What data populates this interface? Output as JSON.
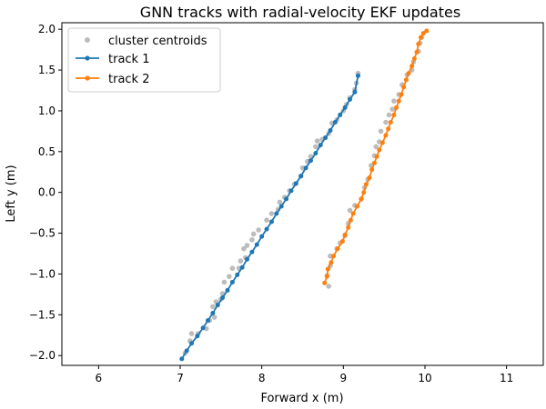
{
  "chart_data": {
    "type": "line",
    "title": "GNN tracks with radial-velocity EKF updates",
    "xlabel": "Forward x (m)",
    "ylabel": "Left y (m)",
    "xlim": [
      5.55,
      11.45
    ],
    "ylim": [
      -2.12,
      2.08
    ],
    "xticks": [
      6,
      7,
      8,
      9,
      10,
      11
    ],
    "yticks": [
      -2.0,
      -1.5,
      -1.0,
      -0.5,
      0.0,
      0.5,
      1.0,
      1.5,
      2.0
    ],
    "xtick_labels": [
      "6",
      "7",
      "8",
      "9",
      "10",
      "11"
    ],
    "ytick_labels": [
      "−2.0",
      "−1.5",
      "−1.0",
      "−0.5",
      "0.0",
      "0.5",
      "1.0",
      "1.5",
      "2.0"
    ],
    "grid": false,
    "legend_position": "top-left",
    "series": [
      {
        "name": "cluster centroids",
        "style": "scatter",
        "color": "#a0a0a0",
        "points": [
          [
            7.06,
            -1.97
          ],
          [
            7.12,
            -1.82
          ],
          [
            7.14,
            -1.73
          ],
          [
            7.22,
            -1.73
          ],
          [
            7.32,
            -1.67
          ],
          [
            7.36,
            -1.57
          ],
          [
            7.42,
            -1.53
          ],
          [
            7.4,
            -1.4
          ],
          [
            7.44,
            -1.34
          ],
          [
            7.5,
            -1.31
          ],
          [
            7.52,
            -1.24
          ],
          [
            7.54,
            -1.1
          ],
          [
            7.6,
            -1.03
          ],
          [
            7.64,
            -0.93
          ],
          [
            7.72,
            -0.93
          ],
          [
            7.74,
            -0.84
          ],
          [
            7.8,
            -0.8
          ],
          [
            7.78,
            -0.69
          ],
          [
            7.82,
            -0.65
          ],
          [
            7.88,
            -0.58
          ],
          [
            7.9,
            -0.51
          ],
          [
            7.96,
            -0.46
          ],
          [
            8.06,
            -0.34
          ],
          [
            8.12,
            -0.26
          ],
          [
            8.2,
            -0.21
          ],
          [
            8.22,
            -0.12
          ],
          [
            8.28,
            -0.06
          ],
          [
            8.34,
            0.02
          ],
          [
            8.4,
            0.1
          ],
          [
            8.48,
            0.2
          ],
          [
            8.5,
            0.3
          ],
          [
            8.56,
            0.38
          ],
          [
            8.6,
            0.44
          ],
          [
            8.66,
            0.56
          ],
          [
            8.68,
            0.63
          ],
          [
            8.74,
            0.65
          ],
          [
            8.82,
            0.72
          ],
          [
            8.86,
            0.85
          ],
          [
            8.92,
            0.89
          ],
          [
            9.0,
            1.0
          ],
          [
            9.04,
            1.08
          ],
          [
            9.08,
            1.16
          ],
          [
            9.14,
            1.26
          ],
          [
            9.16,
            1.34
          ],
          [
            9.18,
            1.46
          ],
          [
            8.82,
            -1.15
          ],
          [
            8.8,
            -1.02
          ],
          [
            8.84,
            -0.9
          ],
          [
            8.84,
            -0.78
          ],
          [
            8.92,
            -0.69
          ],
          [
            8.96,
            -0.62
          ],
          [
            9.02,
            -0.53
          ],
          [
            9.06,
            -0.38
          ],
          [
            9.08,
            -0.22
          ],
          [
            9.14,
            -0.16
          ],
          [
            9.22,
            -0.08
          ],
          [
            9.26,
            0.06
          ],
          [
            9.3,
            0.16
          ],
          [
            9.34,
            0.33
          ],
          [
            9.38,
            0.45
          ],
          [
            9.4,
            0.56
          ],
          [
            9.44,
            0.62
          ],
          [
            9.46,
            0.75
          ],
          [
            9.52,
            0.86
          ],
          [
            9.56,
            0.95
          ],
          [
            9.6,
            1.02
          ],
          [
            9.62,
            1.12
          ],
          [
            9.68,
            1.2
          ],
          [
            9.72,
            1.32
          ],
          [
            9.78,
            1.44
          ],
          [
            9.84,
            1.5
          ],
          [
            9.86,
            1.6
          ],
          [
            9.92,
            1.73
          ],
          [
            9.94,
            1.83
          ],
          [
            9.96,
            1.9
          ]
        ]
      },
      {
        "name": "track 1",
        "style": "line-marker",
        "color": "#1f77b4",
        "points": [
          [
            7.02,
            -2.04
          ],
          [
            7.08,
            -1.94
          ],
          [
            7.14,
            -1.85
          ],
          [
            7.21,
            -1.76
          ],
          [
            7.28,
            -1.66
          ],
          [
            7.34,
            -1.57
          ],
          [
            7.4,
            -1.48
          ],
          [
            7.46,
            -1.38
          ],
          [
            7.52,
            -1.29
          ],
          [
            7.58,
            -1.2
          ],
          [
            7.64,
            -1.1
          ],
          [
            7.7,
            -1.01
          ],
          [
            7.76,
            -0.92
          ],
          [
            7.82,
            -0.82
          ],
          [
            7.88,
            -0.73
          ],
          [
            7.94,
            -0.64
          ],
          [
            8.0,
            -0.54
          ],
          [
            8.06,
            -0.45
          ],
          [
            8.12,
            -0.36
          ],
          [
            8.18,
            -0.26
          ],
          [
            8.24,
            -0.17
          ],
          [
            8.3,
            -0.08
          ],
          [
            8.36,
            0.02
          ],
          [
            8.42,
            0.11
          ],
          [
            8.48,
            0.2
          ],
          [
            8.54,
            0.3
          ],
          [
            8.6,
            0.39
          ],
          [
            8.66,
            0.48
          ],
          [
            8.72,
            0.58
          ],
          [
            8.78,
            0.67
          ],
          [
            8.84,
            0.76
          ],
          [
            8.9,
            0.86
          ],
          [
            8.96,
            0.95
          ],
          [
            9.02,
            1.04
          ],
          [
            9.08,
            1.14
          ],
          [
            9.14,
            1.23
          ],
          [
            9.18,
            1.43
          ]
        ]
      },
      {
        "name": "track 2",
        "style": "line-marker",
        "color": "#ff7f0e",
        "points": [
          [
            8.77,
            -1.11
          ],
          [
            8.8,
            -1.03
          ],
          [
            8.81,
            -0.94
          ],
          [
            8.85,
            -0.86
          ],
          [
            8.88,
            -0.78
          ],
          [
            8.93,
            -0.69
          ],
          [
            8.99,
            -0.6
          ],
          [
            9.02,
            -0.52
          ],
          [
            9.06,
            -0.43
          ],
          [
            9.09,
            -0.34
          ],
          [
            9.12,
            -0.26
          ],
          [
            9.17,
            -0.17
          ],
          [
            9.22,
            -0.08
          ],
          [
            9.25,
            0.0
          ],
          [
            9.28,
            0.1
          ],
          [
            9.32,
            0.18
          ],
          [
            9.35,
            0.28
          ],
          [
            9.38,
            0.36
          ],
          [
            9.41,
            0.44
          ],
          [
            9.44,
            0.52
          ],
          [
            9.48,
            0.61
          ],
          [
            9.52,
            0.7
          ],
          [
            9.55,
            0.78
          ],
          [
            9.58,
            0.86
          ],
          [
            9.62,
            0.95
          ],
          [
            9.65,
            1.04
          ],
          [
            9.68,
            1.12
          ],
          [
            9.71,
            1.2
          ],
          [
            9.74,
            1.29
          ],
          [
            9.77,
            1.38
          ],
          [
            9.8,
            1.46
          ],
          [
            9.84,
            1.55
          ],
          [
            9.87,
            1.64
          ],
          [
            9.9,
            1.72
          ],
          [
            9.92,
            1.82
          ],
          [
            9.95,
            1.9
          ],
          [
            9.98,
            1.95
          ],
          [
            10.02,
            1.98
          ]
        ]
      }
    ]
  }
}
